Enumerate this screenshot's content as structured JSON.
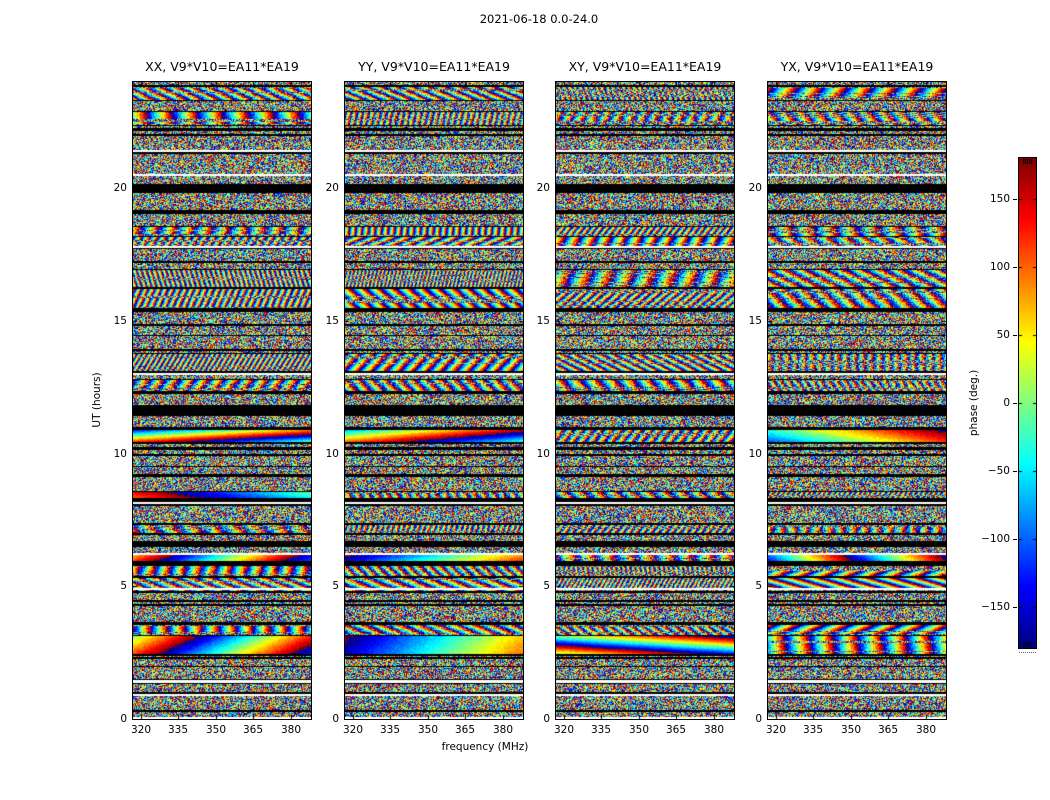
{
  "figure": {
    "title": "2021-06-18 0.0-24.0",
    "background": "#ffffff"
  },
  "chart_data": {
    "type": "heatmap",
    "description": "Four polarization phase-vs-time-vs-frequency waterfall panels for baseline V9*V10 (EA11*EA19), phase rendered with jet colormap; dense interferometric fringe noise with black flagged-time bands.",
    "panels": [
      {
        "label": "XX, V9*V10=EA11*EA19",
        "smooth_weight": 0.9
      },
      {
        "label": "YY, V9*V10=EA11*EA19",
        "smooth_weight": 0.9
      },
      {
        "label": "XY, V9*V10=EA11*EA19",
        "smooth_weight": 0.3
      },
      {
        "label": "YX, V9*V10=EA11*EA19",
        "smooth_weight": 0.45
      }
    ],
    "xlabel": "frequency (MHz)",
    "ylabel": "UT (hours)",
    "xlim": [
      317,
      388
    ],
    "ylim": [
      0,
      24
    ],
    "xticks": [
      320,
      335,
      350,
      365,
      380
    ],
    "yticks": [
      0,
      5,
      10,
      15,
      20
    ],
    "grid": false,
    "colorbar": {
      "label": "phase (deg.)",
      "vmin": -180,
      "vmax": 180,
      "ticks": [
        150,
        100,
        50,
        0,
        -50,
        -100,
        -150
      ],
      "colormap": "jet",
      "colormap_stops": [
        "#00008b",
        "#0000ff",
        "#00bfff",
        "#00ffcc",
        "#7fff7f",
        "#ffff00",
        "#ff7f00",
        "#ff0000",
        "#8b0000"
      ]
    },
    "flagged_ut_bands": [
      {
        "ut": 23.85,
        "h": 2
      },
      {
        "ut": 22.2,
        "h": 3
      },
      {
        "ut": 20.0,
        "h": 9
      },
      {
        "ut": 19.1,
        "h": 3
      },
      {
        "ut": 17.2,
        "h": 2
      },
      {
        "ut": 15.4,
        "h": 4
      },
      {
        "ut": 13.9,
        "h": 2
      },
      {
        "ut": 11.6,
        "h": 9
      },
      {
        "ut": 10.2,
        "h": 3
      },
      {
        "ut": 8.3,
        "h": 2
      },
      {
        "ut": 6.6,
        "h": 6
      },
      {
        "ut": 5.9,
        "h": 3
      },
      {
        "ut": 4.3,
        "h": 2
      },
      {
        "ut": 2.3,
        "h": 2
      }
    ],
    "white_ut_bands": [
      {
        "ut": 21.4,
        "h": 2
      },
      {
        "ut": 20.5,
        "h": 2
      },
      {
        "ut": 17.8,
        "h": 2
      },
      {
        "ut": 13.0,
        "h": 2
      },
      {
        "ut": 6.2,
        "h": 2
      },
      {
        "ut": 4.9,
        "h": 2
      },
      {
        "ut": 0.9,
        "h": 2
      }
    ],
    "render": {
      "seed": 20210618
    }
  }
}
